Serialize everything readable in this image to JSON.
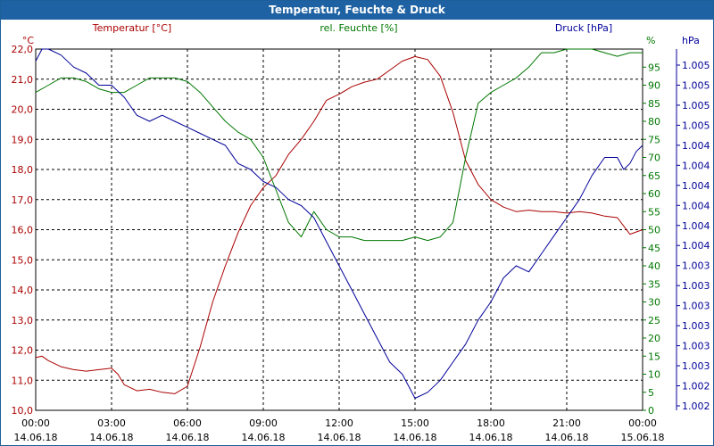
{
  "chart_data": {
    "type": "line",
    "title": "Temperatur, Feuchte & Druck",
    "axes": {
      "left": {
        "label": "Temperatur [°C]",
        "unit": "°C",
        "color": "#aa0000",
        "range": [
          10.0,
          22.0
        ],
        "ticks": [
          "10,0",
          "11,0",
          "12,0",
          "13,0",
          "14,0",
          "15,0",
          "16,0",
          "17,0",
          "18,0",
          "19,0",
          "20,0",
          "21,0",
          "22,0"
        ]
      },
      "right1": {
        "label": "rel. Feuchte [%]",
        "unit": "%",
        "color": "#007700",
        "range": [
          0,
          100
        ],
        "ticks": [
          "0",
          "5",
          "10",
          "15",
          "20",
          "25",
          "30",
          "35",
          "40",
          "45",
          "50",
          "55",
          "60",
          "65",
          "70",
          "75",
          "80",
          "85",
          "90",
          "95"
        ]
      },
      "right2": {
        "label": "Druck [hPa]",
        "unit": "hPa",
        "color": "#000099",
        "range": [
          1002.0,
          1005.0
        ],
        "ticks": [
          "1.002",
          "1.002",
          "1.003",
          "1.003",
          "1.003",
          "1.003",
          "1.003",
          "1.003",
          "1.004",
          "1.004",
          "1.004",
          "1.004",
          "1.004",
          "1.004",
          "1.005",
          "1.005",
          "1.005",
          "1.005"
        ]
      }
    },
    "x_ticks": [
      {
        "time": "00:00",
        "date": "14.06.18"
      },
      {
        "time": "03:00",
        "date": "14.06.18"
      },
      {
        "time": "06:00",
        "date": "14.06.18"
      },
      {
        "time": "09:00",
        "date": "14.06.18"
      },
      {
        "time": "12:00",
        "date": "14.06.18"
      },
      {
        "time": "15:00",
        "date": "14.06.18"
      },
      {
        "time": "18:00",
        "date": "14.06.18"
      },
      {
        "time": "21:00",
        "date": "14.06.18"
      },
      {
        "time": "00:00",
        "date": "15.06.18"
      }
    ],
    "x_hours": [
      0,
      24
    ],
    "grid": true,
    "series": [
      {
        "name": "Temperatur [°C]",
        "axis": "left",
        "color": "#aa0000",
        "x": [
          0,
          0.25,
          0.5,
          1,
          1.5,
          2,
          2.5,
          3,
          3.25,
          3.5,
          4,
          4.5,
          5,
          5.5,
          6,
          6.5,
          7,
          7.5,
          8,
          8.5,
          9,
          9.5,
          10,
          10.5,
          11,
          11.5,
          12,
          12.5,
          13,
          13.5,
          14,
          14.5,
          15,
          15.5,
          16,
          16.5,
          17,
          17.5,
          18,
          18.5,
          19,
          19.5,
          20,
          20.5,
          21,
          21.5,
          22,
          22.5,
          23,
          23.5,
          24
        ],
        "values": [
          11.75,
          11.8,
          11.65,
          11.45,
          11.35,
          11.3,
          11.35,
          11.4,
          11.2,
          10.85,
          10.65,
          10.7,
          10.6,
          10.55,
          10.8,
          12.1,
          13.6,
          14.8,
          15.9,
          16.8,
          17.4,
          17.8,
          18.5,
          19.0,
          19.6,
          20.3,
          20.5,
          20.75,
          20.9,
          21.0,
          21.3,
          21.6,
          21.75,
          21.65,
          21.1,
          19.9,
          18.3,
          17.5,
          17.0,
          16.75,
          16.6,
          16.65,
          16.6,
          16.6,
          16.55,
          16.6,
          16.55,
          16.45,
          16.4,
          15.85,
          16.0
        ]
      },
      {
        "name": "rel. Feuchte [%]",
        "axis": "right1",
        "color": "#007700",
        "x": [
          0,
          0.5,
          1,
          1.5,
          2,
          2.5,
          3,
          3.5,
          4,
          4.5,
          5,
          5.5,
          6,
          6.5,
          7,
          7.5,
          8,
          8.5,
          9,
          9.5,
          10,
          10.5,
          11,
          11.5,
          12,
          12.5,
          13,
          13.5,
          14,
          14.5,
          15,
          15.5,
          16,
          16.5,
          17,
          17.5,
          18,
          18.5,
          19,
          19.5,
          20,
          20.5,
          21,
          21.5,
          22,
          22.5,
          23,
          23.5,
          24
        ],
        "values": [
          88,
          90,
          92,
          92,
          91,
          89,
          88,
          88,
          90,
          92,
          92,
          92,
          91,
          88,
          84,
          80,
          77,
          75,
          70,
          61,
          52,
          48,
          55,
          50,
          48,
          48,
          47,
          47,
          47,
          47,
          48,
          47,
          48,
          52,
          70,
          85,
          88,
          90,
          92,
          95,
          99,
          99,
          100,
          100,
          100,
          99,
          98,
          99,
          99
        ]
      },
      {
        "name": "Druck [hPa]",
        "axis": "right2",
        "color": "#000099",
        "x": [
          0,
          0.25,
          0.5,
          1,
          1.5,
          2,
          2.5,
          3,
          3.5,
          4,
          4.5,
          5,
          5.5,
          6,
          6.5,
          7,
          7.5,
          8,
          8.5,
          9,
          9.5,
          10,
          10.5,
          11,
          11.5,
          12,
          12.5,
          13,
          13.5,
          14,
          14.5,
          15,
          15.5,
          16,
          16.5,
          17,
          17.5,
          18,
          18.5,
          19,
          19.5,
          20,
          20.5,
          21,
          21.5,
          22,
          22.5,
          23,
          23.25,
          23.5,
          23.75,
          24
        ],
        "values": [
          1004.9,
          1005.0,
          1005.0,
          1004.95,
          1004.85,
          1004.8,
          1004.7,
          1004.7,
          1004.6,
          1004.45,
          1004.4,
          1004.45,
          1004.4,
          1004.35,
          1004.3,
          1004.25,
          1004.2,
          1004.05,
          1004.0,
          1003.9,
          1003.85,
          1003.75,
          1003.7,
          1003.6,
          1003.4,
          1003.2,
          1003.0,
          1002.8,
          1002.6,
          1002.4,
          1002.3,
          1002.1,
          1002.15,
          1002.25,
          1002.4,
          1002.55,
          1002.75,
          1002.9,
          1003.1,
          1003.2,
          1003.15,
          1003.3,
          1003.45,
          1003.6,
          1003.75,
          1003.95,
          1004.1,
          1004.1,
          1004.0,
          1004.05,
          1004.15,
          1004.2
        ]
      }
    ]
  }
}
